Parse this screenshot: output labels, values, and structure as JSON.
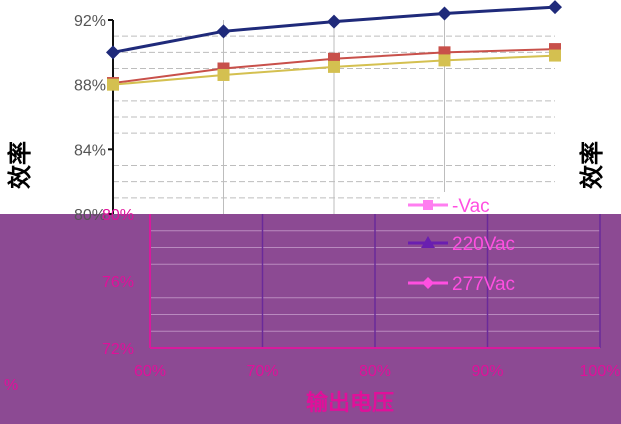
{
  "chart_data": {
    "type": "line",
    "xlabel": "输出电压",
    "ylabel": "效率",
    "right_ylabel": "效率",
    "x_ticks": [
      "60%",
      "70%",
      "80%",
      "90%",
      "100%"
    ],
    "y_ticks_upper": [
      "92%",
      "88%",
      "84%",
      "80%"
    ],
    "y_ticks_lower": [
      "80%",
      "76%",
      "72%"
    ],
    "ylim": [
      72,
      93
    ],
    "x": [
      60,
      70,
      80,
      90,
      100
    ],
    "series": [
      {
        "name": "",
        "color": "#1f2a7a",
        "marker": "diamond",
        "values": [
          90.0,
          91.3,
          91.9,
          92.4,
          92.8
        ]
      },
      {
        "name": "",
        "color": "#c8504a",
        "marker": "square",
        "values": [
          88.1,
          89.0,
          89.6,
          90.0,
          90.2
        ]
      },
      {
        "name": "",
        "color": "#d4c050",
        "marker": "square",
        "values": [
          88.0,
          88.6,
          89.1,
          89.5,
          89.8
        ]
      }
    ],
    "legend": {
      "placement": "right",
      "entries": [
        {
          "label": "-Vac",
          "color": "#ff7ef0",
          "marker": "square"
        },
        {
          "label": "220Vac",
          "color": "#6a1fb0",
          "marker": "triangle"
        },
        {
          "label": "277Vac",
          "color": "#ff4fe0",
          "marker": "diamond"
        }
      ]
    },
    "grid": true,
    "left_fragment": "%",
    "background_top": "#ffffff",
    "background_bottom": "#8c4a93",
    "label_color": "#e0109a"
  }
}
